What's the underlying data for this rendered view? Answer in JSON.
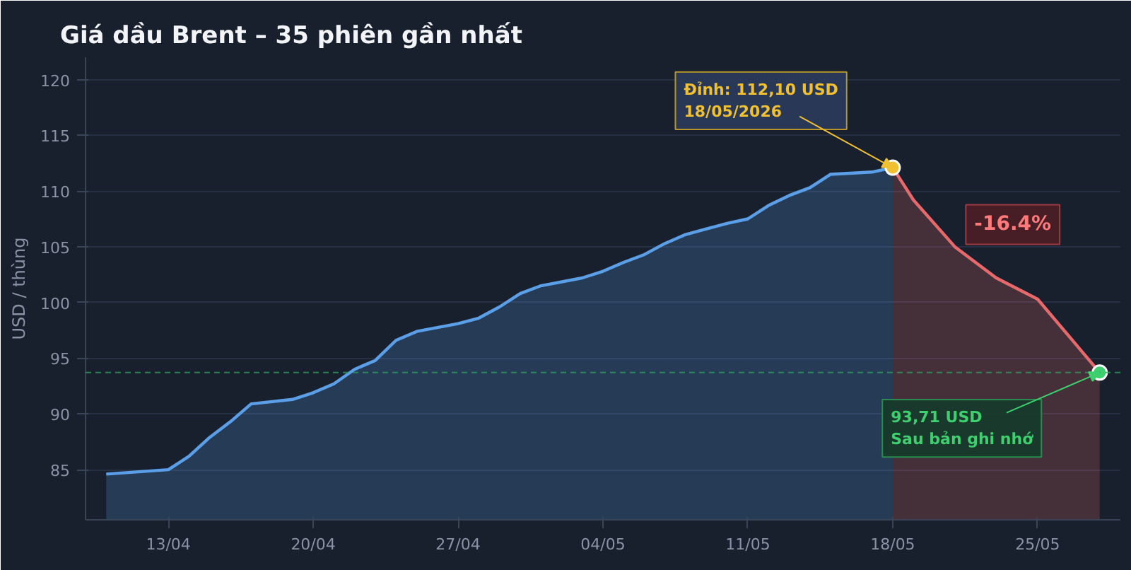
{
  "chart_data": {
    "type": "area",
    "title": "Giá dầu Brent – 35 phiên gần nhất",
    "ylabel": "USD / thùng",
    "series": [
      {
        "color": "#5b9fe8",
        "x": [
          "2026-04-10",
          "2026-04-13",
          "2026-04-14",
          "2026-04-15",
          "2026-04-16",
          "2026-04-17",
          "2026-04-19",
          "2026-04-20",
          "2026-04-21",
          "2026-04-22",
          "2026-04-23",
          "2026-04-24",
          "2026-04-25",
          "2026-04-27",
          "2026-04-28",
          "2026-04-29",
          "2026-04-30",
          "2026-05-01",
          "2026-05-03",
          "2026-05-04",
          "2026-05-05",
          "2026-05-06",
          "2026-05-07",
          "2026-05-08",
          "2026-05-09",
          "2026-05-10",
          "2026-05-11",
          "2026-05-12",
          "2026-05-13",
          "2026-05-14",
          "2026-05-15",
          "2026-05-17",
          "2026-05-18"
        ],
        "values": [
          84.6,
          85.0,
          86.2,
          87.9,
          89.3,
          90.9,
          91.3,
          91.9,
          92.7,
          94.0,
          94.8,
          96.6,
          97.4,
          98.1,
          98.6,
          99.6,
          100.8,
          101.5,
          102.2,
          102.8,
          103.6,
          104.3,
          105.3,
          106.1,
          106.6,
          107.1,
          107.5,
          108.7,
          109.6,
          110.3,
          111.5,
          111.7,
          112.1
        ]
      },
      {
        "color": "#e8696b",
        "x": [
          "2026-05-18",
          "2026-05-19",
          "2026-05-21",
          "2026-05-23",
          "2026-05-25",
          "2026-05-28"
        ],
        "values": [
          112.1,
          109.2,
          105.0,
          102.2,
          100.3,
          93.71
        ]
      }
    ],
    "xlim": [
      "2026-04-09",
      "2026-05-29"
    ],
    "ylim": [
      80.5,
      122
    ],
    "xticks": [
      {
        "value": "2026-04-13",
        "label": "13/04"
      },
      {
        "value": "2026-04-20",
        "label": "20/04"
      },
      {
        "value": "2026-04-27",
        "label": "27/04"
      },
      {
        "value": "2026-05-04",
        "label": "04/05"
      },
      {
        "value": "2026-05-11",
        "label": "11/05"
      },
      {
        "value": "2026-05-18",
        "label": "18/05"
      },
      {
        "value": "2026-05-25",
        "label": "25/05"
      }
    ],
    "yticks": [
      85,
      90,
      95,
      100,
      105,
      110,
      115,
      120
    ],
    "grid": "y",
    "marker": "none",
    "line_style": "solid",
    "ref_lines": [
      {
        "axis": "y",
        "value": 93.71,
        "color": "#2e9e5e",
        "line_style": "dashed"
      }
    ],
    "annotations": [
      {
        "text": "Đỉnh: 112,10 USD\n18/05/2026",
        "x": "2026-05-18",
        "y": 112.1
      },
      {
        "text": "-16.4%",
        "x": "2026-05-21",
        "y": 105.0
      },
      {
        "text": "93,71 USD\nSau bản ghi nhớ",
        "x": "2026-05-28",
        "y": 93.71
      }
    ]
  }
}
